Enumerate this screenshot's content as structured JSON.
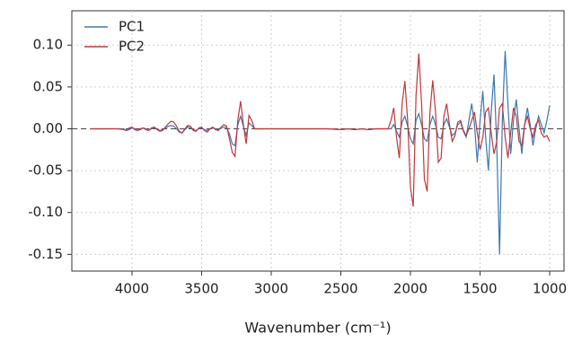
{
  "chart_data": {
    "type": "line",
    "x_label": "Wavenumber (cm⁻¹)",
    "xlim": [
      4432,
      897
    ],
    "ylim": [
      0.141,
      -0.17
    ],
    "xticks": [
      4000,
      3500,
      3000,
      2500,
      2000,
      1500,
      1000
    ],
    "yticks": [
      {
        "value": 0.1,
        "label": "0.10"
      },
      0.05,
      {
        "value": 0,
        "label": "0.00"
      },
      -0.05,
      {
        "value": -0.1,
        "label": "-0.10"
      },
      -0.15
    ],
    "grid": true,
    "hline": 0,
    "legend": "top-left",
    "x": [
      4300,
      4100,
      4060,
      4040,
      4020,
      4000,
      3980,
      3960,
      3940,
      3920,
      3900,
      3880,
      3860,
      3840,
      3820,
      3800,
      3780,
      3760,
      3740,
      3720,
      3700,
      3680,
      3660,
      3640,
      3620,
      3600,
      3580,
      3560,
      3540,
      3520,
      3500,
      3480,
      3460,
      3440,
      3420,
      3400,
      3380,
      3360,
      3340,
      3320,
      3300,
      3280,
      3260,
      3240,
      3220,
      3200,
      3180,
      3160,
      3140,
      3120,
      3000,
      2800,
      2600,
      2500,
      2450,
      2400,
      2350,
      2300,
      2250,
      2200,
      2160,
      2140,
      2120,
      2100,
      2080,
      2060,
      2040,
      2020,
      2000,
      1980,
      1960,
      1940,
      1920,
      1900,
      1880,
      1860,
      1840,
      1820,
      1800,
      1780,
      1760,
      1740,
      1720,
      1700,
      1680,
      1660,
      1640,
      1620,
      1600,
      1580,
      1560,
      1540,
      1520,
      1500,
      1480,
      1460,
      1440,
      1420,
      1400,
      1380,
      1360,
      1340,
      1320,
      1300,
      1280,
      1260,
      1240,
      1220,
      1200,
      1180,
      1160,
      1140,
      1120,
      1100,
      1080,
      1060,
      1040,
      1020,
      1000
    ],
    "series": [
      {
        "name": "PC1",
        "color": "#3a78b0",
        "values": [
          0,
          0,
          0,
          -0.002,
          -0.001,
          0.001,
          0,
          -0.002,
          -0.001,
          0.001,
          0,
          -0.002,
          0,
          0.001,
          0,
          -0.002,
          -0.001,
          0.001,
          0.003,
          0.004,
          0.003,
          0,
          -0.004,
          -0.005,
          -0.001,
          0.002,
          0.001,
          -0.001,
          -0.002,
          0,
          0.001,
          -0.001,
          -0.002,
          0,
          0.001,
          0,
          -0.001,
          0.001,
          0.002,
          0.001,
          -0.006,
          -0.018,
          -0.02,
          0.005,
          0.015,
          0.003,
          -0.008,
          0.007,
          0.004,
          0,
          0,
          0,
          0,
          -0.001,
          0,
          -0.001,
          0,
          -0.001,
          0,
          0,
          0,
          0,
          0.005,
          -0.003,
          -0.01,
          0.008,
          0.015,
          0.003,
          -0.012,
          -0.018,
          0.01,
          0.018,
          0.005,
          -0.012,
          -0.015,
          0.005,
          0.015,
          0.005,
          -0.01,
          -0.012,
          0.005,
          0.012,
          0.002,
          -0.008,
          -0.005,
          0.005,
          0.008,
          -0.003,
          -0.01,
          0.01,
          0.03,
          0.005,
          -0.04,
          0.01,
          0.045,
          -0.01,
          -0.05,
          0.02,
          0.065,
          -0.02,
          -0.15,
          0.01,
          0.093,
          0.03,
          -0.03,
          0.01,
          0.035,
          0,
          -0.03,
          0.005,
          0.025,
          0.005,
          -0.02,
          0,
          0.015,
          0.005,
          -0.005,
          0.01,
          0.028
        ]
      },
      {
        "name": "PC2",
        "color": "#c0383c",
        "values": [
          0,
          0,
          -0.001,
          -0.002,
          0.001,
          0.002,
          -0.001,
          -0.002,
          0,
          0.001,
          -0.001,
          -0.002,
          0.001,
          0.002,
          -0.001,
          -0.003,
          -0.002,
          0.002,
          0.006,
          0.009,
          0.008,
          0.003,
          -0.003,
          -0.005,
          0,
          0.004,
          0.003,
          -0.002,
          -0.003,
          0.001,
          0.002,
          -0.002,
          -0.004,
          0,
          0.002,
          -0.001,
          -0.002,
          0.002,
          0.005,
          0.003,
          -0.012,
          -0.028,
          -0.033,
          0.01,
          0.033,
          0.005,
          -0.018,
          0.016,
          0.01,
          0,
          0,
          0,
          0,
          -0.001,
          0,
          -0.001,
          0,
          -0.001,
          0,
          0,
          0,
          0.01,
          0.025,
          -0.01,
          -0.035,
          0.03,
          0.057,
          0.01,
          -0.07,
          -0.093,
          0.04,
          0.09,
          0.03,
          -0.06,
          -0.075,
          0.02,
          0.058,
          0.02,
          -0.04,
          -0.035,
          0.015,
          0.03,
          0.005,
          -0.015,
          -0.008,
          0.008,
          0.01,
          -0.002,
          -0.008,
          0,
          0.01,
          0.02,
          -0.005,
          -0.025,
          -0.01,
          0.02,
          0.025,
          -0.005,
          -0.03,
          -0.015,
          0.025,
          0.03,
          -0.01,
          -0.035,
          -0.005,
          0.025,
          0.015,
          -0.015,
          -0.02,
          0.005,
          0.015,
          0,
          -0.01,
          0.005,
          0.01,
          -0.005,
          -0.01,
          -0.008,
          -0.015
        ]
      }
    ]
  }
}
